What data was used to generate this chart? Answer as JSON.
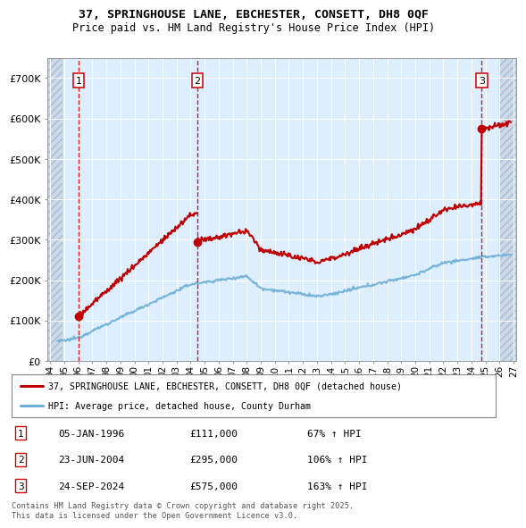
{
  "title_line1": "37, SPRINGHOUSE LANE, EBCHESTER, CONSETT, DH8 0QF",
  "title_line2": "Price paid vs. HM Land Registry's House Price Index (HPI)",
  "sales": [
    {
      "date_num": 1996.02,
      "price": 111000,
      "label": "1"
    },
    {
      "date_num": 2004.48,
      "price": 295000,
      "label": "2"
    },
    {
      "date_num": 2024.73,
      "price": 575000,
      "label": "3"
    }
  ],
  "sale_dates_info": [
    {
      "num": "1",
      "date": "05-JAN-1996",
      "price": "£111,000",
      "hpi": "67% ↑ HPI"
    },
    {
      "num": "2",
      "date": "23-JUN-2004",
      "price": "£295,000",
      "hpi": "106% ↑ HPI"
    },
    {
      "num": "3",
      "date": "24-SEP-2024",
      "price": "£575,000",
      "hpi": "163% ↑ HPI"
    }
  ],
  "hpi_line_color": "#6baed6",
  "price_line_color": "#c00000",
  "sale_marker_color": "#c00000",
  "vline_color": "#c00000",
  "background_plot": "#ddeeff",
  "background_hatch_color": "#ccd9ea",
  "legend_label_red": "37, SPRINGHOUSE LANE, EBCHESTER, CONSETT, DH8 0QF (detached house)",
  "legend_label_blue": "HPI: Average price, detached house, County Durham",
  "footer": "Contains HM Land Registry data © Crown copyright and database right 2025.\nThis data is licensed under the Open Government Licence v3.0.",
  "ylim": [
    0,
    750000
  ],
  "yticks": [
    0,
    100000,
    200000,
    300000,
    400000,
    500000,
    600000,
    700000
  ],
  "xlim_left": 1993.8,
  "xlim_right": 2027.2,
  "xticks": [
    1994,
    1995,
    1996,
    1997,
    1998,
    1999,
    2000,
    2001,
    2002,
    2003,
    2004,
    2005,
    2006,
    2007,
    2008,
    2009,
    2010,
    2011,
    2012,
    2013,
    2014,
    2015,
    2016,
    2017,
    2018,
    2019,
    2020,
    2021,
    2022,
    2023,
    2024,
    2025,
    2026,
    2027
  ]
}
